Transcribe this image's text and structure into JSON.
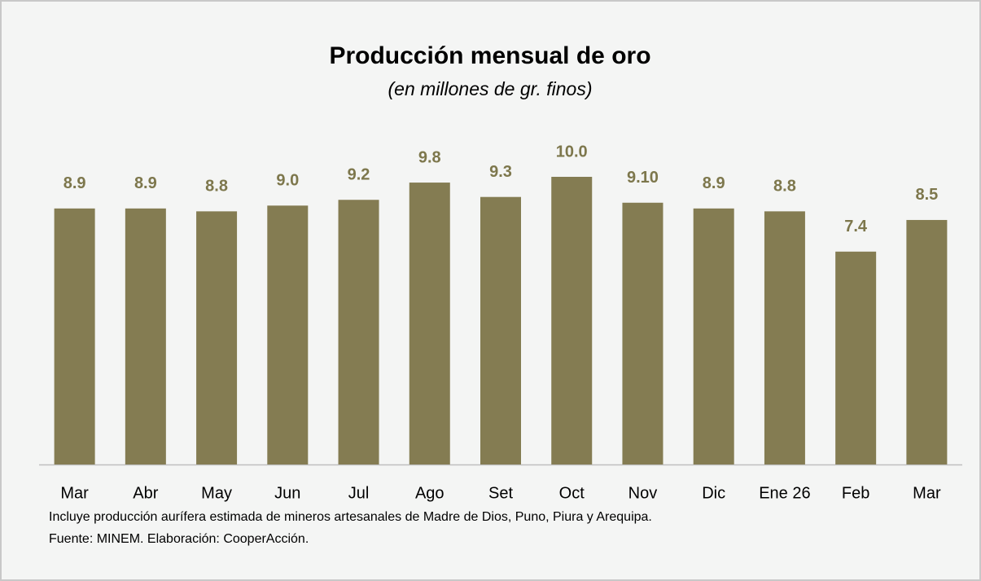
{
  "chart_data": {
    "type": "bar",
    "title": "Producción mensual de oro",
    "subtitle": "(en millones de gr. finos)",
    "categories": [
      "Mar",
      "Abr",
      "May",
      "Jun",
      "Jul",
      "Ago",
      "Set",
      "Oct",
      "Nov",
      "Dic",
      "Ene 26",
      "Feb",
      "Mar"
    ],
    "values": [
      8.9,
      8.9,
      8.8,
      9.0,
      9.2,
      9.8,
      9.3,
      10.0,
      9.1,
      8.9,
      8.8,
      7.4,
      8.5
    ],
    "value_labels": [
      "8.9",
      "8.9",
      "8.8",
      "9.0",
      "9.2",
      "9.8",
      "9.3",
      "10.0",
      "9.10",
      "8.9",
      "8.8",
      "7.4",
      "8.5"
    ],
    "color": "#847c52",
    "notes": [
      "Incluye producción aurífera estimada de mineros artesanales de Madre de Dios, Puno, Piura y Arequipa.",
      "Fuente: MINEM. Elaboración: CooperAcción."
    ]
  }
}
